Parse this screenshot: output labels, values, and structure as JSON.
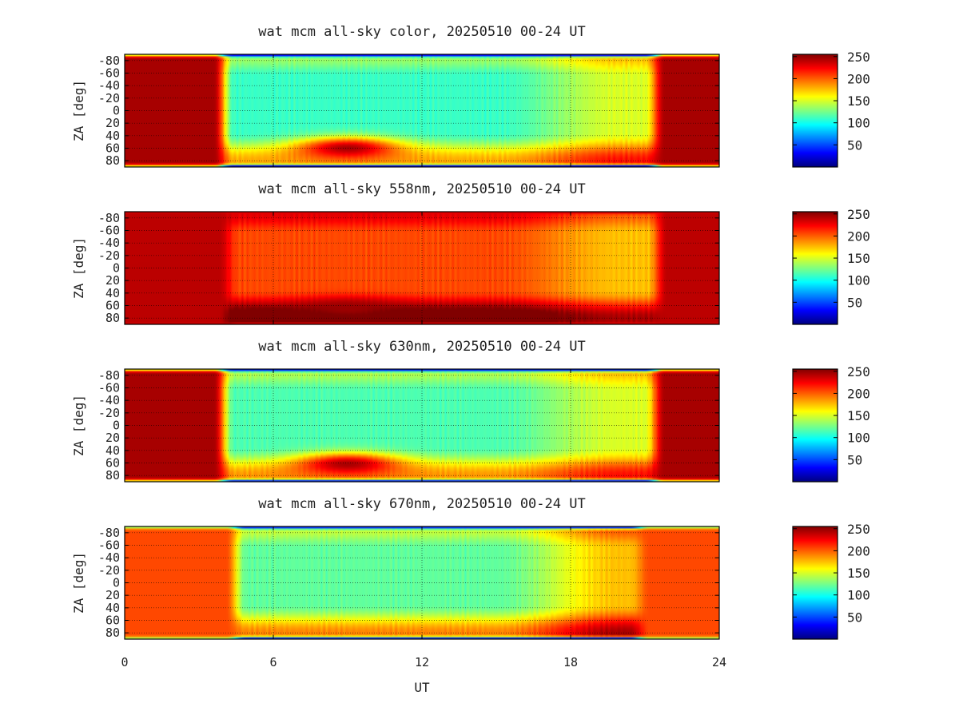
{
  "figure": {
    "xlabel": "UT",
    "x_ticks": [
      0,
      6,
      12,
      18,
      24
    ],
    "xlim": [
      0,
      24
    ]
  },
  "chart_data": [
    {
      "type": "heatmap",
      "title": "wat mcm all-sky color, 20250510 00-24 UT",
      "xlabel": "",
      "ylabel": "ZA [deg]",
      "xlim": [
        0,
        24
      ],
      "ylim": [
        -90,
        90
      ],
      "y_ticks": [
        -80,
        -60,
        -40,
        -20,
        0,
        20,
        40,
        60,
        80
      ],
      "y_tick_labels": [
        "-80",
        "-60",
        "-40",
        "-20",
        "0",
        "20",
        "40",
        "60",
        "80"
      ],
      "grid": true,
      "colorbar": {
        "min": 0,
        "max": 255,
        "ticks": [
          50,
          100,
          150,
          200,
          250
        ]
      },
      "features": {
        "background": 245,
        "daytime_start": 4.0,
        "daytime_end": 21.4,
        "daytime_value": 110,
        "late_value": 150,
        "edge_band_value": 30,
        "dark_blob": {
          "ut": 9.0,
          "za": 60,
          "value": 245
        }
      }
    },
    {
      "type": "heatmap",
      "title": "wat mcm all-sky 558nm, 20250510 00-24 UT",
      "xlabel": "",
      "ylabel": "ZA [deg]",
      "xlim": [
        0,
        24
      ],
      "ylim": [
        -90,
        90
      ],
      "y_ticks": [
        -80,
        -60,
        -40,
        -20,
        0,
        20,
        40,
        60,
        80
      ],
      "y_tick_labels": [
        "-80",
        "-60",
        "-40",
        "-20",
        "0",
        "20",
        "40",
        "60",
        "80"
      ],
      "grid": true,
      "colorbar": {
        "min": 0,
        "max": 255,
        "ticks": [
          50,
          100,
          150,
          200,
          250
        ]
      },
      "features": {
        "background": 240,
        "daytime_start": 4.2,
        "daytime_end": 21.5,
        "daytime_value": 205,
        "late_value": 175,
        "edge_band_value": 230,
        "dark_blob": {
          "ut": 9.0,
          "za": 65,
          "value": 248
        }
      }
    },
    {
      "type": "heatmap",
      "title": "wat mcm all-sky 630nm, 20250510 00-24 UT",
      "xlabel": "",
      "ylabel": "ZA [deg]",
      "xlim": [
        0,
        24
      ],
      "ylim": [
        -90,
        90
      ],
      "y_ticks": [
        -80,
        -60,
        -40,
        -20,
        0,
        20,
        40,
        60,
        80
      ],
      "y_tick_labels": [
        "-80",
        "-60",
        "-40",
        "-20",
        "0",
        "20",
        "40",
        "60",
        "80"
      ],
      "grid": true,
      "colorbar": {
        "min": 0,
        "max": 255,
        "ticks": [
          50,
          100,
          150,
          200,
          250
        ]
      },
      "features": {
        "background": 245,
        "daytime_start": 4.0,
        "daytime_end": 21.4,
        "daytime_value": 115,
        "late_value": 150,
        "edge_band_value": 40,
        "dark_blob": {
          "ut": 9.0,
          "za": 62,
          "value": 245
        }
      }
    },
    {
      "type": "heatmap",
      "title": "wat mcm all-sky 670nm, 20250510 00-24 UT",
      "xlabel": "UT",
      "ylabel": "ZA [deg]",
      "xlim": [
        0,
        24
      ],
      "ylim": [
        -90,
        90
      ],
      "y_ticks": [
        -80,
        -60,
        -40,
        -20,
        0,
        20,
        40,
        60,
        80
      ],
      "y_tick_labels": [
        "-80",
        "-60",
        "-40",
        "-20",
        "0",
        "20",
        "40",
        "60",
        "80"
      ],
      "grid": true,
      "colorbar": {
        "min": 0,
        "max": 255,
        "ticks": [
          50,
          100,
          150,
          200,
          250
        ]
      },
      "features": {
        "background": 205,
        "daytime_start": 4.5,
        "daytime_end": 20.8,
        "daytime_value": 120,
        "late_value": 175,
        "edge_band_value": 40,
        "dark_blob": null
      }
    }
  ]
}
